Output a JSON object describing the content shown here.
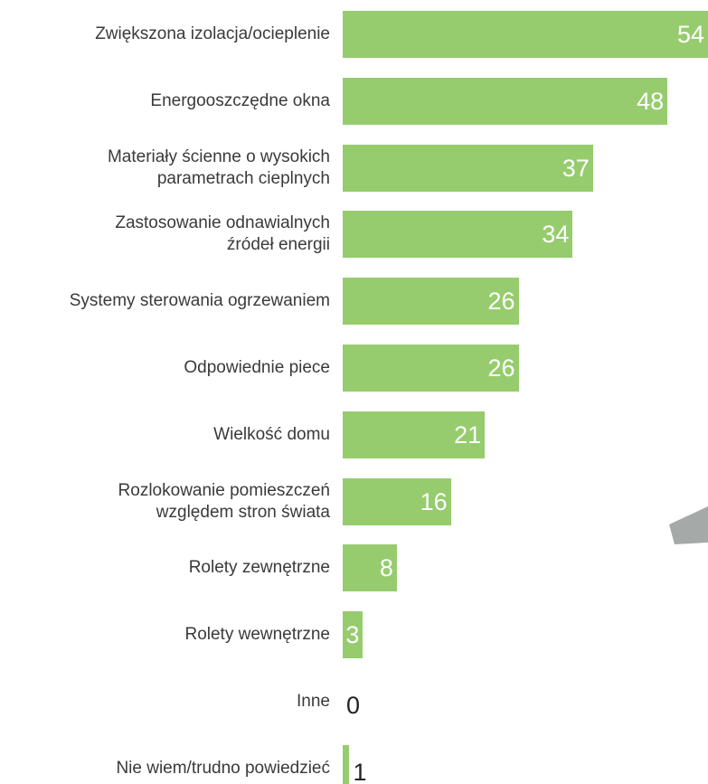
{
  "chart_data": {
    "type": "bar",
    "orientation": "horizontal",
    "color": "#96cc6e",
    "categories": [
      "Zwiększona izolacja/ocieplenie",
      "Energooszczędne okna",
      "Materiały ścienne o wysokich\nparametrach cieplnych",
      "Zastosowanie odnawialnych\nźródeł energii",
      "Systemy sterowania ogrzewaniem",
      "Odpowiednie piece",
      "Wielkość domu",
      "Rozlokowanie pomieszczeń\nwzględem stron świata",
      "Rolety zewnętrzne",
      "Rolety wewnętrzne",
      "Inne",
      "Nie wiem/trudno powiedzieć"
    ],
    "values": [
      54,
      48,
      37,
      34,
      26,
      26,
      21,
      16,
      8,
      3,
      0,
      1
    ]
  }
}
